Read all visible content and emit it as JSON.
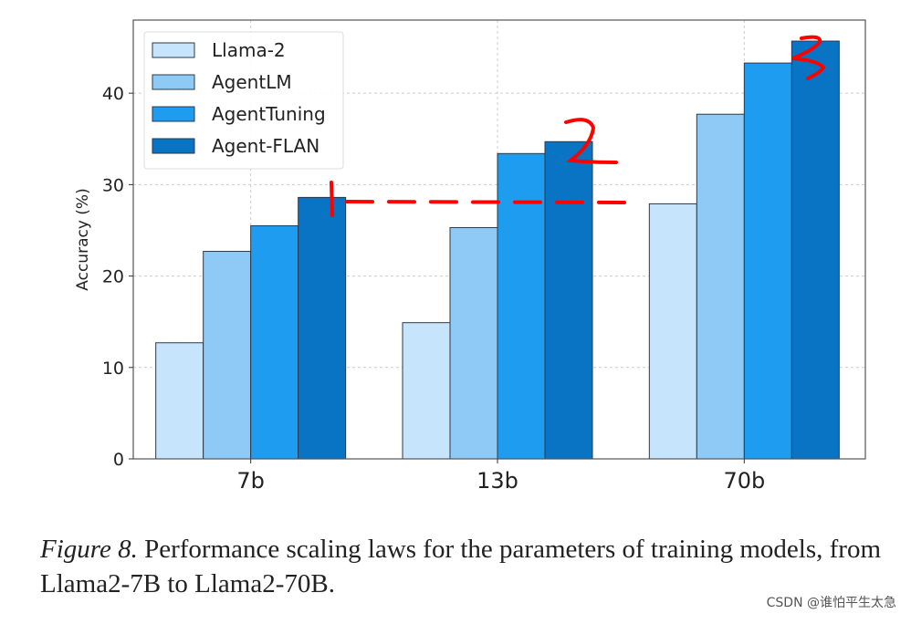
{
  "chart_data": {
    "type": "bar",
    "categories": [
      "7b",
      "13b",
      "70b"
    ],
    "series": [
      {
        "name": "Llama-2",
        "values": [
          12.7,
          14.9,
          27.9
        ],
        "color": "#c6e4fb"
      },
      {
        "name": "AgentLM",
        "values": [
          22.7,
          25.3,
          37.7
        ],
        "color": "#8fcaf7"
      },
      {
        "name": "AgentTuning",
        "values": [
          25.5,
          33.4,
          43.3
        ],
        "color": "#1e9cf0"
      },
      {
        "name": "Agent-FLAN",
        "values": [
          28.6,
          34.7,
          45.7
        ],
        "color": "#0a74c4"
      }
    ],
    "ylabel": "Accuracy (%)",
    "xlabel": "",
    "ylim": [
      0,
      48
    ],
    "yticks": [
      0,
      10,
      20,
      30,
      40
    ],
    "grid": true,
    "legend": "top-left",
    "annotations": [
      "2",
      "3"
    ],
    "annotation_color": "#ff0000"
  },
  "caption": {
    "label": "Figure 8.",
    "text": " Performance scaling laws for the parameters of training models, from Llama2-7B to Llama2-70B."
  },
  "watermark": "CSDN @谁怕平生太急"
}
